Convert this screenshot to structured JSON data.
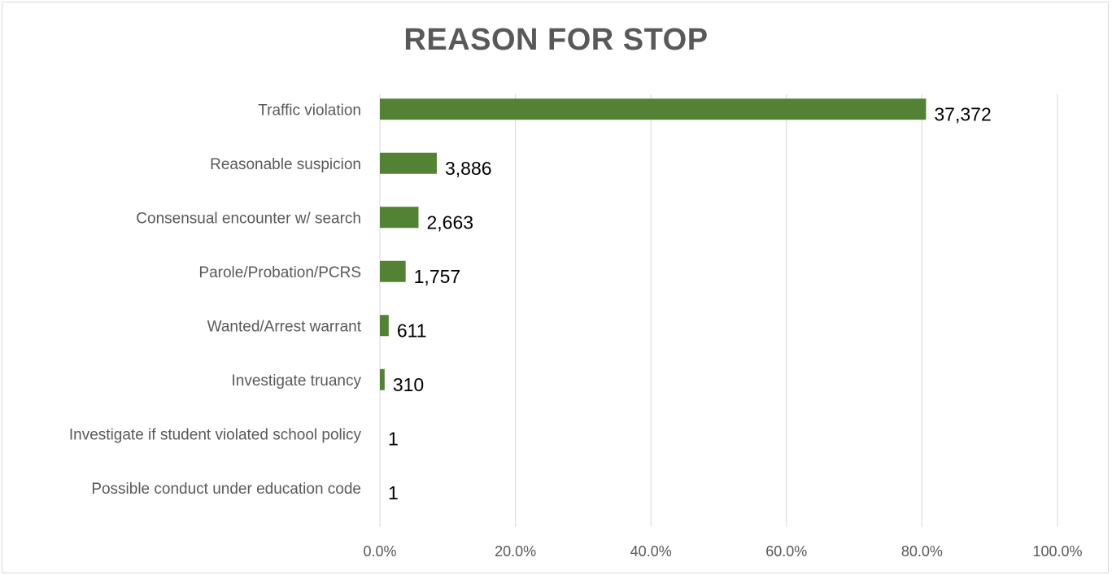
{
  "chart_data": {
    "type": "bar",
    "orientation": "horizontal",
    "title": "REASON FOR STOP",
    "xlabel": "",
    "ylabel": "",
    "xlim": [
      0,
      100
    ],
    "x_ticks": [
      "0.0%",
      "20.0%",
      "40.0%",
      "60.0%",
      "80.0%",
      "100.0%"
    ],
    "x_tick_values": [
      0,
      20,
      40,
      60,
      80,
      100
    ],
    "grid": true,
    "legend": "none",
    "bar_color": "#548235",
    "categories": [
      "Traffic violation",
      "Reasonable suspicion",
      "Consensual encounter w/ search",
      "Parole/Probation/PCRS",
      "Wanted/Arrest warrant",
      "Investigate truancy",
      "Investigate if student violated school policy",
      "Possible conduct under education code"
    ],
    "values": [
      80.6,
      8.4,
      5.7,
      3.8,
      1.3,
      0.7,
      0.0,
      0.0
    ],
    "data_labels": [
      "37,372",
      "3,886",
      "2,663",
      "1,757",
      "611",
      "310",
      "1",
      "1"
    ]
  }
}
